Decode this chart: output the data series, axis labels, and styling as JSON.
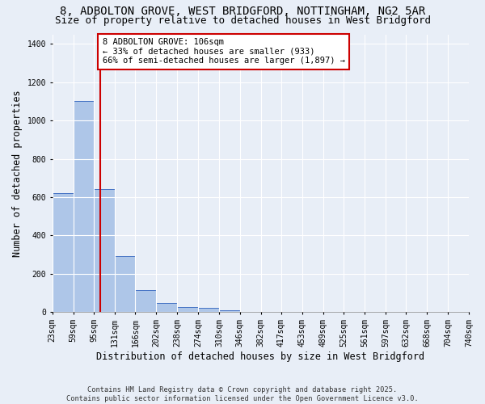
{
  "title_line1": "8, ADBOLTON GROVE, WEST BRIDGFORD, NOTTINGHAM, NG2 5AR",
  "title_line2": "Size of property relative to detached houses in West Bridgford",
  "xlabel": "Distribution of detached houses by size in West Bridgford",
  "ylabel": "Number of detached properties",
  "bin_edges": [
    23,
    59,
    95,
    131,
    166,
    202,
    238,
    274,
    310,
    346,
    382,
    417,
    453,
    489,
    525,
    561,
    597,
    632,
    668,
    704,
    740
  ],
  "bar_heights": [
    620,
    1100,
    640,
    290,
    115,
    47,
    25,
    20,
    10,
    0,
    0,
    0,
    0,
    0,
    0,
    0,
    0,
    0,
    0,
    0
  ],
  "bar_color": "#aec6e8",
  "bar_edge_color": "#4472c4",
  "property_size": 106,
  "vline_color": "#cc0000",
  "annotation_text": "8 ADBOLTON GROVE: 106sqm\n← 33% of detached houses are smaller (933)\n66% of semi-detached houses are larger (1,897) →",
  "annotation_box_edge": "#cc0000",
  "annotation_box_face": "#ffffff",
  "ylim": [
    0,
    1450
  ],
  "yticks": [
    0,
    200,
    400,
    600,
    800,
    1000,
    1200,
    1400
  ],
  "bg_color": "#e8eef7",
  "grid_color": "#ffffff",
  "footer_line1": "Contains HM Land Registry data © Crown copyright and database right 2025.",
  "footer_line2": "Contains public sector information licensed under the Open Government Licence v3.0.",
  "title_fontsize": 10,
  "subtitle_fontsize": 9,
  "axis_label_fontsize": 8.5,
  "tick_fontsize": 7,
  "annotation_fontsize": 7.5
}
